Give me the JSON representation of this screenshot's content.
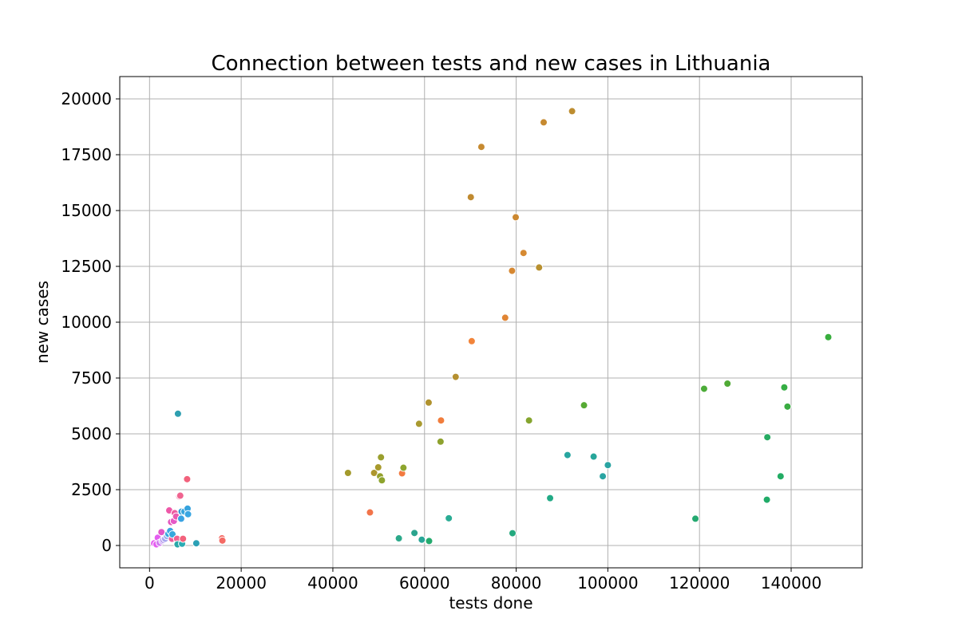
{
  "chart_data": {
    "type": "scatter",
    "title": "Connection between tests and new cases in Lithuania",
    "xlabel": "tests done",
    "ylabel": "new cases",
    "xlim": [
      -6500,
      155500
    ],
    "ylim": [
      -1000,
      21000
    ],
    "xticks": [
      0,
      20000,
      40000,
      60000,
      80000,
      100000,
      120000,
      140000
    ],
    "xtick_labels": [
      "0",
      "20000",
      "40000",
      "60000",
      "80000",
      "100000",
      "120000",
      "140000"
    ],
    "yticks": [
      0,
      2500,
      5000,
      7500,
      10000,
      12500,
      15000,
      17500,
      20000
    ],
    "ytick_labels": [
      "0",
      "2500",
      "5000",
      "7500",
      "10000",
      "12500",
      "15000",
      "17500",
      "20000"
    ],
    "grid": true,
    "legend": "none",
    "points": [
      {
        "x": 1000,
        "y": 100,
        "color": "#e45ef0"
      },
      {
        "x": 1500,
        "y": 50,
        "color": "#e45ef0"
      },
      {
        "x": 1800,
        "y": 350,
        "color": "#e45ef0"
      },
      {
        "x": 2200,
        "y": 120,
        "color": "#d07af0"
      },
      {
        "x": 2600,
        "y": 600,
        "color": "#e256c8"
      },
      {
        "x": 2800,
        "y": 200,
        "color": "#c08af0"
      },
      {
        "x": 3000,
        "y": 250,
        "color": "#b59bee"
      },
      {
        "x": 3400,
        "y": 300,
        "color": "#a9a6ef"
      },
      {
        "x": 3800,
        "y": 420,
        "color": "#9cb0ee"
      },
      {
        "x": 4100,
        "y": 520,
        "color": "#38a8e0"
      },
      {
        "x": 4300,
        "y": 1570,
        "color": "#ee58a8"
      },
      {
        "x": 4500,
        "y": 650,
        "color": "#3aa6e2"
      },
      {
        "x": 4700,
        "y": 1050,
        "color": "#e455be"
      },
      {
        "x": 4900,
        "y": 300,
        "color": "#ee5c9a"
      },
      {
        "x": 5000,
        "y": 500,
        "color": "#36a8dc"
      },
      {
        "x": 5300,
        "y": 1100,
        "color": "#e558c6"
      },
      {
        "x": 5500,
        "y": 1450,
        "color": "#ec5ea0"
      },
      {
        "x": 5800,
        "y": 1300,
        "color": "#e95cb0"
      },
      {
        "x": 6000,
        "y": 300,
        "color": "#f06292"
      },
      {
        "x": 6100,
        "y": 50,
        "color": "#2aa8a8"
      },
      {
        "x": 6200,
        "y": 5900,
        "color": "#2e9fb0"
      },
      {
        "x": 6500,
        "y": 2200,
        "color": "#ef5f96"
      },
      {
        "x": 6700,
        "y": 2230,
        "color": "#f06490"
      },
      {
        "x": 6900,
        "y": 1200,
        "color": "#3aa2e2"
      },
      {
        "x": 7000,
        "y": 1520,
        "color": "#2f9fd8"
      },
      {
        "x": 7100,
        "y": 80,
        "color": "#2bacb4"
      },
      {
        "x": 7300,
        "y": 300,
        "color": "#f3627c"
      },
      {
        "x": 7600,
        "y": 1520,
        "color": "#35a4dc"
      },
      {
        "x": 8200,
        "y": 2970,
        "color": "#f2627c"
      },
      {
        "x": 8300,
        "y": 1650,
        "color": "#36a3de"
      },
      {
        "x": 8400,
        "y": 1400,
        "color": "#3aa6e2"
      },
      {
        "x": 10200,
        "y": 100,
        "color": "#2ba0b5"
      },
      {
        "x": 15800,
        "y": 320,
        "color": "#f46a64"
      },
      {
        "x": 15900,
        "y": 220,
        "color": "#f46a64"
      },
      {
        "x": 43300,
        "y": 3250,
        "color": "#a39a2c"
      },
      {
        "x": 48100,
        "y": 1480,
        "color": "#f2744a"
      },
      {
        "x": 49000,
        "y": 3250,
        "color": "#ad962e"
      },
      {
        "x": 49900,
        "y": 3500,
        "color": "#a89a2c"
      },
      {
        "x": 50300,
        "y": 3100,
        "color": "#94a12c"
      },
      {
        "x": 50500,
        "y": 3950,
        "color": "#9a9f2e"
      },
      {
        "x": 50700,
        "y": 2920,
        "color": "#8ea42e"
      },
      {
        "x": 54400,
        "y": 320,
        "color": "#2ba98a"
      },
      {
        "x": 55100,
        "y": 3230,
        "color": "#f27a40"
      },
      {
        "x": 55400,
        "y": 3480,
        "color": "#8da52e"
      },
      {
        "x": 57800,
        "y": 560,
        "color": "#2aa48e"
      },
      {
        "x": 58800,
        "y": 5450,
        "color": "#a99a30"
      },
      {
        "x": 59400,
        "y": 260,
        "color": "#28a696"
      },
      {
        "x": 60900,
        "y": 6400,
        "color": "#b0922e"
      },
      {
        "x": 61000,
        "y": 200,
        "color": "#24aa6e"
      },
      {
        "x": 63500,
        "y": 4650,
        "color": "#8ea22e"
      },
      {
        "x": 63600,
        "y": 5600,
        "color": "#f17d3c"
      },
      {
        "x": 65300,
        "y": 1220,
        "color": "#2aac94"
      },
      {
        "x": 66800,
        "y": 7550,
        "color": "#b59030"
      },
      {
        "x": 70100,
        "y": 15600,
        "color": "#c08a30"
      },
      {
        "x": 70300,
        "y": 9150,
        "color": "#f2843a"
      },
      {
        "x": 72400,
        "y": 17850,
        "color": "#c68a30"
      },
      {
        "x": 77600,
        "y": 10200,
        "color": "#e18534"
      },
      {
        "x": 79100,
        "y": 12300,
        "color": "#d68832"
      },
      {
        "x": 79200,
        "y": 550,
        "color": "#24a97e"
      },
      {
        "x": 79900,
        "y": 14700,
        "color": "#cc8830"
      },
      {
        "x": 81600,
        "y": 13100,
        "color": "#d68a32"
      },
      {
        "x": 82800,
        "y": 5600,
        "color": "#85a52e"
      },
      {
        "x": 85000,
        "y": 12450,
        "color": "#b89030"
      },
      {
        "x": 86000,
        "y": 18950,
        "color": "#c68a30"
      },
      {
        "x": 87400,
        "y": 2120,
        "color": "#22aa86"
      },
      {
        "x": 91200,
        "y": 4050,
        "color": "#28a6a0"
      },
      {
        "x": 92200,
        "y": 19450,
        "color": "#bd8d30"
      },
      {
        "x": 94800,
        "y": 6280,
        "color": "#56aa34"
      },
      {
        "x": 96900,
        "y": 3980,
        "color": "#27a69a"
      },
      {
        "x": 98900,
        "y": 3100,
        "color": "#2aa4a2"
      },
      {
        "x": 100000,
        "y": 3600,
        "color": "#2aa4a2"
      },
      {
        "x": 119100,
        "y": 1200,
        "color": "#24a970"
      },
      {
        "x": 121000,
        "y": 7020,
        "color": "#4cac38"
      },
      {
        "x": 126100,
        "y": 7250,
        "color": "#50aa36"
      },
      {
        "x": 134700,
        "y": 2050,
        "color": "#20ab68"
      },
      {
        "x": 134800,
        "y": 4850,
        "color": "#26ab62"
      },
      {
        "x": 137700,
        "y": 3100,
        "color": "#22ac64"
      },
      {
        "x": 138500,
        "y": 7080,
        "color": "#36ae44"
      },
      {
        "x": 139200,
        "y": 6220,
        "color": "#3aac42"
      },
      {
        "x": 148100,
        "y": 9330,
        "color": "#38ae3e"
      }
    ]
  }
}
